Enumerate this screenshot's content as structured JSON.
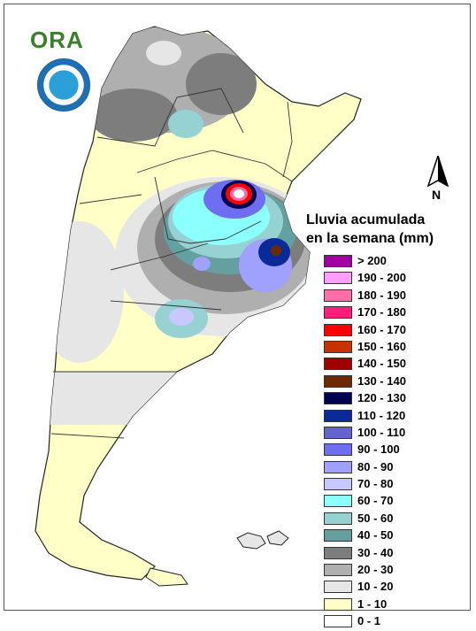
{
  "logo": {
    "text": "ORA"
  },
  "north_arrow": {
    "label": "N"
  },
  "legend": {
    "title_line1": "Lluvia acumulada",
    "title_line2": "en la semana (mm)",
    "classes": [
      {
        "label": "> 200",
        "color": "#a000a0"
      },
      {
        "label": "190 - 200",
        "color": "#ff9cff"
      },
      {
        "label": "180 - 190",
        "color": "#ff6ea8"
      },
      {
        "label": "170 - 180",
        "color": "#ff1f7a"
      },
      {
        "label": "160 - 170",
        "color": "#ff0000"
      },
      {
        "label": "150 - 160",
        "color": "#c83200"
      },
      {
        "label": "140 - 150",
        "color": "#a00000"
      },
      {
        "label": "130 - 140",
        "color": "#6b2a00"
      },
      {
        "label": "120 - 130",
        "color": "#000050"
      },
      {
        "label": "110 - 120",
        "color": "#0a2a9a"
      },
      {
        "label": "100 - 110",
        "color": "#6464d0"
      },
      {
        "label": "90 - 100",
        "color": "#6e6ef0"
      },
      {
        "label": "80 - 90",
        "color": "#a0a0ff"
      },
      {
        "label": "70 - 80",
        "color": "#c8c8ff"
      },
      {
        "label": "60 - 70",
        "color": "#8cffff"
      },
      {
        "label": "50 - 60",
        "color": "#96d2d2"
      },
      {
        "label": "40 - 50",
        "color": "#64a0a0"
      },
      {
        "label": "30 - 40",
        "color": "#7d7d7d"
      },
      {
        "label": "20 - 30",
        "color": "#afafaf"
      },
      {
        "label": "10 - 20",
        "color": "#e6e6e6"
      },
      {
        "label": "1 - 10",
        "color": "#ffffc8"
      },
      {
        "label": "0 - 1",
        "color": "#ffffff"
      }
    ]
  }
}
